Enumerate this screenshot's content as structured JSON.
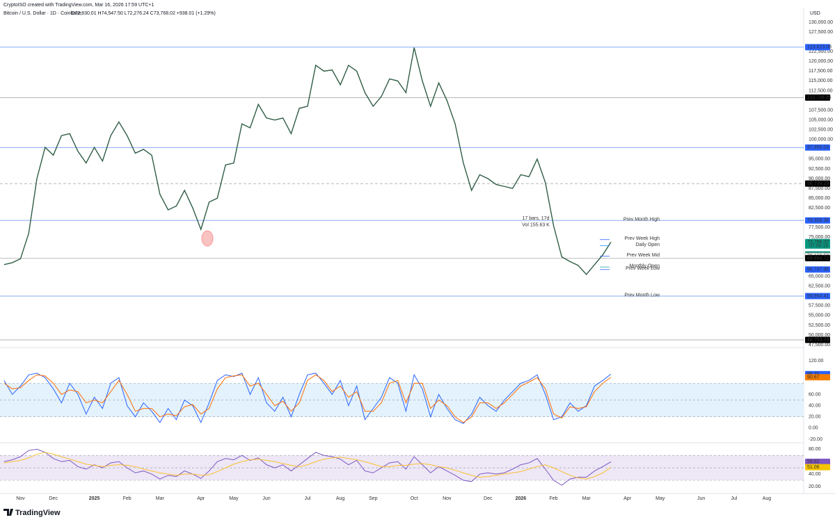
{
  "header": {
    "credit": "CryptoISO created with TradingView.com, Mar 16, 2026 17:59 UTC+1",
    "symbol": "Bitcoin / U.S. Dollar · 1D · Coinbase",
    "ohlc": "O72,830.01 H74,547.50 L72,276.24 C73,768.02 +938.01 (+1.29%)",
    "currency": "USD"
  },
  "footer": {
    "logo": "TradingView"
  },
  "chart_data": [
    {
      "type": "line",
      "categories": [
        null,
        null,
        "Nov",
        null,
        null,
        null,
        "Dec",
        null,
        null,
        null,
        null,
        "2025",
        null,
        null,
        null,
        "Feb",
        null,
        null,
        null,
        "Mar",
        null,
        null,
        null,
        null,
        "Apr",
        null,
        null,
        null,
        "May",
        null,
        null,
        null,
        "Jun",
        null,
        null,
        null,
        null,
        "Jul",
        null,
        null,
        null,
        "Aug",
        null,
        null,
        null,
        "Sep",
        null,
        null,
        null,
        null,
        "Oct",
        null,
        null,
        null,
        "Nov",
        null,
        null,
        null,
        null,
        "Dec",
        null,
        null,
        null,
        "2026",
        null,
        null,
        null,
        "Feb",
        null,
        null,
        null,
        "Mar",
        null,
        null,
        null,
        null,
        "Apr",
        null,
        null,
        null,
        "May",
        null,
        null,
        null,
        null,
        "Jun",
        null,
        null,
        null,
        "Jul",
        null,
        null,
        null,
        "Aug",
        null,
        null,
        null,
        null
      ],
      "series": [
        {
          "color": "#2f5d45",
          "values": [
            68000,
            68500,
            69500,
            76000,
            90000,
            98000,
            96000,
            101000,
            101500,
            97000,
            94000,
            98000,
            94500,
            101000,
            104500,
            101000,
            96500,
            97500,
            96000,
            86000,
            82000,
            83000,
            87000,
            82500,
            77000,
            84000,
            85000,
            93500,
            94000,
            104000,
            103000,
            109000,
            105500,
            105000,
            105500,
            101500,
            108000,
            108500,
            119000,
            117500,
            117800,
            114000,
            119000,
            117500,
            112000,
            108500,
            111000,
            115500,
            115000,
            112000,
            123500,
            115000,
            108500,
            114500,
            110000,
            104000,
            94000,
            87000,
            91000,
            90000,
            88500,
            88000,
            87500,
            91000,
            90500,
            95000,
            89000,
            78000,
            70000,
            68800,
            67800,
            65500,
            68000,
            70500,
            73768.02,
            null,
            null,
            null,
            null,
            null,
            null,
            null,
            null,
            null,
            null,
            null,
            null,
            null,
            null,
            null,
            null,
            null,
            null,
            null,
            null,
            null,
            null,
            null
          ]
        }
      ],
      "ylim": [
        47150,
        131250
      ],
      "yticks": [
        {
          "value": 47500,
          "label": "47,500.00"
        },
        {
          "value": 50000,
          "label": "50,000.00"
        },
        {
          "value": 52500,
          "label": "52,500.00"
        },
        {
          "value": 55000,
          "label": "55,000.00"
        },
        {
          "value": 57500,
          "label": "57,500.00"
        },
        {
          "value": 62500,
          "label": "62,500.00"
        },
        {
          "value": 65000,
          "label": "65,000.00"
        },
        {
          "value": 75000,
          "label": "75,000.00"
        },
        {
          "value": 77500,
          "label": "77,500.00"
        },
        {
          "value": 82500,
          "label": "82,500.00"
        },
        {
          "value": 85000,
          "label": "85,000.00"
        },
        {
          "value": 87500,
          "label": "87,500.00"
        },
        {
          "value": 90000,
          "label": "90,000.00"
        },
        {
          "value": 92500,
          "label": "92,500.00"
        },
        {
          "value": 95000,
          "label": "95,000.00"
        },
        {
          "value": 100000,
          "label": "100,000.00"
        },
        {
          "value": 102500,
          "label": "102,500.00"
        },
        {
          "value": 105000,
          "label": "105,000.00"
        },
        {
          "value": 107500,
          "label": "107,500.00"
        },
        {
          "value": 112500,
          "label": "112,500.00"
        },
        {
          "value": 115000,
          "label": "115,000.00"
        },
        {
          "value": 117500,
          "label": "117,500.00"
        },
        {
          "value": 120000,
          "label": "120,000.00"
        },
        {
          "value": 122500,
          "label": "122,500.00"
        },
        {
          "value": 127500,
          "label": "127,500.00"
        },
        {
          "value": 130000,
          "label": "130,000.00"
        }
      ],
      "levels": [
        {
          "value": 123623.08,
          "label": "123,623.08",
          "color": "#2962ff",
          "line": "solid"
        },
        {
          "value": 110738.86,
          "label": "110,738.86",
          "color": "#000000",
          "line": "solid"
        },
        {
          "value": 97955.03,
          "label": "97,955.03",
          "color": "#2962ff",
          "line": "solid"
        },
        {
          "value": 88739.29,
          "label": "88,739.29",
          "color": "#000000",
          "line": "dashed"
        },
        {
          "value": 79309.38,
          "label": "79,309.38",
          "color": "#2962ff",
          "line": "solid"
        },
        {
          "value": 73768.02,
          "label": "73,768.02",
          "color": "#089981"
        },
        {
          "value": 70621.12,
          "label": "70,621.12",
          "color": "#089981"
        },
        {
          "value": 70160.53,
          "label": "70,160.53",
          "color": "#ffffff"
        },
        {
          "value": 69654.72,
          "label": "69,654.72",
          "color": "#000000",
          "line": "solid"
        },
        {
          "value": 66747.96,
          "label": "66,747.96",
          "color": "#2962ff"
        },
        {
          "value": 59954.41,
          "label": "59,954.41",
          "color": "#2962ff",
          "line": "solid"
        },
        {
          "value": 48753.73,
          "label": "48,753.73",
          "color": "#000000",
          "line": "solid"
        }
      ],
      "countdown": "07:00:16",
      "markers": [
        {
          "text": "Prev Month High",
          "value": 79309.38,
          "color": "#26a69a"
        },
        {
          "text": "Prev Week High",
          "value": 74400,
          "color": "#2962ff",
          "short": true
        },
        {
          "text": "Daily Open",
          "value": 72830.01,
          "color": "#2196f3",
          "short": true
        },
        {
          "text": "Prev Week Mid",
          "value": 70160.53,
          "color": "#2962ff",
          "short": true
        },
        {
          "text": "Monthly Open",
          "value": 67400,
          "color": "#26a69a",
          "short": true
        },
        {
          "text": "Prev Week Low",
          "value": 66747.96,
          "color": "#2962ff",
          "short": true
        },
        {
          "text": "Prev Month Low",
          "value": 59954.41,
          "color": "#26a69a"
        }
      ],
      "measure": [
        "17 bars, 17d",
        "Vol 155.63 K"
      ]
    },
    {
      "type": "line",
      "series": [
        {
          "color": "#2962ff",
          "values": [
            85,
            60,
            75,
            95,
            98,
            90,
            70,
            45,
            80,
            60,
            25,
            55,
            35,
            80,
            90,
            40,
            20,
            45,
            30,
            10,
            35,
            15,
            50,
            40,
            10,
            45,
            85,
            95,
            92,
            98,
            60,
            90,
            45,
            30,
            55,
            20,
            60,
            95,
            98,
            80,
            60,
            85,
            40,
            75,
            15,
            35,
            55,
            90,
            80,
            30,
            95,
            70,
            20,
            60,
            35,
            15,
            8,
            25,
            55,
            40,
            30,
            50,
            65,
            80,
            85,
            95,
            60,
            15,
            20,
            45,
            30,
            40,
            75,
            85,
            96.3,
            null,
            null,
            null,
            null,
            null,
            null,
            null,
            null,
            null,
            null,
            null,
            null,
            null,
            null,
            null,
            null,
            null,
            null,
            null,
            null,
            null,
            null,
            null
          ]
        },
        {
          "color": "#ff6d00",
          "values": [
            80,
            70,
            72,
            85,
            95,
            93,
            80,
            60,
            68,
            65,
            45,
            50,
            45,
            65,
            85,
            60,
            30,
            35,
            35,
            20,
            25,
            22,
            38,
            42,
            25,
            35,
            70,
            90,
            93,
            95,
            75,
            80,
            60,
            40,
            48,
            30,
            45,
            85,
            95,
            85,
            65,
            75,
            55,
            65,
            30,
            30,
            45,
            80,
            85,
            45,
            80,
            80,
            35,
            50,
            40,
            20,
            10,
            20,
            45,
            45,
            35,
            45,
            60,
            75,
            82,
            90,
            70,
            25,
            18,
            38,
            35,
            38,
            65,
            80,
            90.67,
            null,
            null,
            null,
            null,
            null,
            null,
            null,
            null,
            null,
            null,
            null,
            null,
            null,
            null,
            null,
            null,
            null,
            null,
            null,
            null,
            null,
            null,
            null
          ]
        }
      ],
      "ylim": [
        -25,
        140
      ],
      "yticks": [
        {
          "value": 120,
          "label": "120.00"
        },
        {
          "value": 60,
          "label": "60.00"
        },
        {
          "value": 40,
          "label": "40.00"
        },
        {
          "value": 20,
          "label": "20.00"
        },
        {
          "value": 0,
          "label": "0.00"
        },
        {
          "value": -20,
          "label": "-20.00"
        }
      ],
      "band": [
        20,
        80
      ],
      "band_color": "#e3f2fd",
      "hlines": [
        80,
        50,
        20
      ],
      "levels": [
        {
          "value": 96.3,
          "label": "96.30",
          "color": "#2962ff"
        },
        {
          "value": 90.67,
          "label": "90.67",
          "color": "#f57c00"
        }
      ]
    },
    {
      "type": "line",
      "series": [
        {
          "color": "#7e57c2",
          "values": [
            60,
            63,
            68,
            78,
            80,
            75,
            65,
            60,
            62,
            52,
            48,
            55,
            50,
            58,
            60,
            50,
            42,
            45,
            40,
            32,
            38,
            36,
            45,
            40,
            33,
            45,
            60,
            65,
            63,
            70,
            62,
            66,
            55,
            50,
            55,
            45,
            55,
            65,
            75,
            70,
            68,
            64,
            55,
            62,
            45,
            42,
            50,
            58,
            60,
            48,
            68,
            55,
            42,
            52,
            45,
            38,
            30,
            28,
            40,
            42,
            40,
            42,
            48,
            55,
            58,
            65,
            48,
            30,
            22,
            32,
            35,
            35,
            45,
            52,
            59.82,
            null,
            null,
            null,
            null,
            null,
            null,
            null,
            null,
            null,
            null,
            null,
            null,
            null,
            null,
            null,
            null,
            null,
            null,
            null,
            null,
            null,
            null,
            null
          ]
        },
        {
          "color": "#fbc02d",
          "values": [
            58,
            60,
            62,
            66,
            72,
            75,
            72,
            68,
            64,
            60,
            56,
            54,
            52,
            54,
            55,
            54,
            52,
            48,
            45,
            42,
            40,
            38,
            40,
            40,
            38,
            39,
            44,
            50,
            56,
            60,
            63,
            64,
            62,
            60,
            57,
            54,
            52,
            55,
            60,
            64,
            66,
            67,
            65,
            63,
            60,
            56,
            52,
            52,
            54,
            54,
            56,
            57,
            55,
            52,
            50,
            46,
            42,
            38,
            35,
            36,
            38,
            40,
            42,
            44,
            48,
            52,
            55,
            50,
            44,
            38,
            34,
            32,
            36,
            42,
            51.06,
            null,
            null,
            null,
            null,
            null,
            null,
            null,
            null,
            null,
            null,
            null,
            null,
            null,
            null,
            null,
            null,
            null,
            null,
            null,
            null,
            null,
            null,
            null
          ]
        }
      ],
      "ylim": [
        11,
        87
      ],
      "yticks": [
        {
          "value": 80,
          "label": "80.00"
        },
        {
          "value": 40,
          "label": "40.00"
        },
        {
          "value": 20,
          "label": "20.00"
        }
      ],
      "band": [
        30,
        70
      ],
      "band_color": "#ede7f6",
      "hlines": [
        70,
        50,
        30
      ],
      "levels": [
        {
          "value": 59.82,
          "label": "59.82",
          "color": "#7e57c2"
        },
        {
          "value": 51.06,
          "label": "51.06",
          "color": "#f5c400"
        }
      ]
    }
  ]
}
